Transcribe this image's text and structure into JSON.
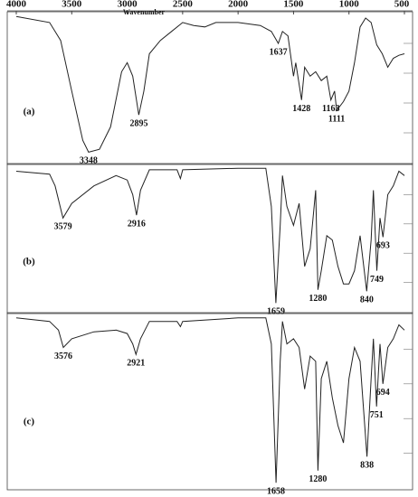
{
  "chart_data": [
    {
      "type": "line",
      "label": "(a)",
      "xlabel": "Wavenumber",
      "xlim": [
        4000,
        500
      ],
      "xticks": [
        4000,
        3500,
        3000,
        2500,
        2000,
        1500,
        1000,
        500
      ],
      "ylim": [
        0,
        100
      ],
      "color": "#222222",
      "x": [
        4000,
        3700,
        3600,
        3500,
        3400,
        3348,
        3250,
        3150,
        3050,
        3000,
        2950,
        2895,
        2850,
        2800,
        2700,
        2600,
        2500,
        2400,
        2300,
        2200,
        2000,
        1800,
        1700,
        1637,
        1600,
        1550,
        1500,
        1480,
        1428,
        1400,
        1350,
        1300,
        1250,
        1200,
        1163,
        1130,
        1111,
        1050,
        1000,
        950,
        900,
        850,
        800,
        750,
        700,
        650,
        600,
        550,
        500
      ],
      "values": [
        98,
        94,
        82,
        48,
        15,
        7,
        9,
        24,
        61,
        67,
        58,
        32,
        48,
        73,
        82,
        88,
        94,
        92,
        91,
        94,
        94,
        92,
        88,
        80,
        88,
        85,
        58,
        67,
        42,
        64,
        58,
        61,
        55,
        58,
        42,
        48,
        35,
        41,
        48,
        67,
        91,
        97,
        94,
        79,
        73,
        64,
        70,
        72,
        73
      ],
      "peaks": [
        3348,
        2895,
        1637,
        1428,
        1163,
        1111
      ]
    },
    {
      "type": "line",
      "label": "(b)",
      "xlim": [
        4000,
        500
      ],
      "ylim": [
        0,
        100
      ],
      "color": "#222222",
      "x": [
        4000,
        3700,
        3650,
        3579,
        3500,
        3300,
        3100,
        3000,
        2950,
        2916,
        2880,
        2800,
        2550,
        2520,
        2500,
        2000,
        1750,
        1700,
        1659,
        1620,
        1600,
        1560,
        1500,
        1450,
        1400,
        1350,
        1300,
        1280,
        1250,
        1200,
        1150,
        1100,
        1050,
        1000,
        950,
        900,
        840,
        800,
        780,
        749,
        720,
        693,
        650,
        600,
        550,
        500
      ],
      "values": [
        96,
        94,
        86,
        64,
        74,
        86,
        93,
        90,
        80,
        66,
        83,
        97,
        97,
        91,
        97,
        98,
        98,
        72,
        6,
        59,
        93,
        72,
        59,
        74,
        31,
        43,
        83,
        15,
        28,
        52,
        49,
        31,
        19,
        19,
        28,
        52,
        14,
        49,
        83,
        28,
        64,
        51,
        80,
        86,
        96,
        93
      ],
      "peaks": [
        3579,
        2916,
        1659,
        1280,
        840,
        749,
        693
      ]
    },
    {
      "type": "line",
      "label": "(c)",
      "xlim": [
        4000,
        500
      ],
      "ylim": [
        0,
        100
      ],
      "color": "#222222",
      "x": [
        4000,
        3700,
        3620,
        3576,
        3500,
        3300,
        3100,
        3000,
        2950,
        2921,
        2880,
        2800,
        2550,
        2520,
        2500,
        2000,
        1750,
        1700,
        1658,
        1620,
        1600,
        1560,
        1500,
        1450,
        1400,
        1350,
        1300,
        1280,
        1250,
        1200,
        1150,
        1100,
        1050,
        1000,
        950,
        900,
        838,
        800,
        780,
        751,
        720,
        694,
        650,
        600,
        550,
        500
      ],
      "values": [
        98,
        96,
        91,
        81,
        86,
        90,
        91,
        89,
        83,
        77,
        86,
        96,
        96,
        93,
        96,
        98,
        98,
        83,
        3,
        73,
        96,
        83,
        86,
        81,
        57,
        76,
        73,
        10,
        63,
        73,
        52,
        36,
        26,
        63,
        81,
        73,
        18,
        63,
        86,
        47,
        83,
        60,
        81,
        86,
        94,
        91
      ],
      "peaks": [
        3576,
        2921,
        1658,
        1280,
        838,
        751,
        694
      ]
    }
  ]
}
